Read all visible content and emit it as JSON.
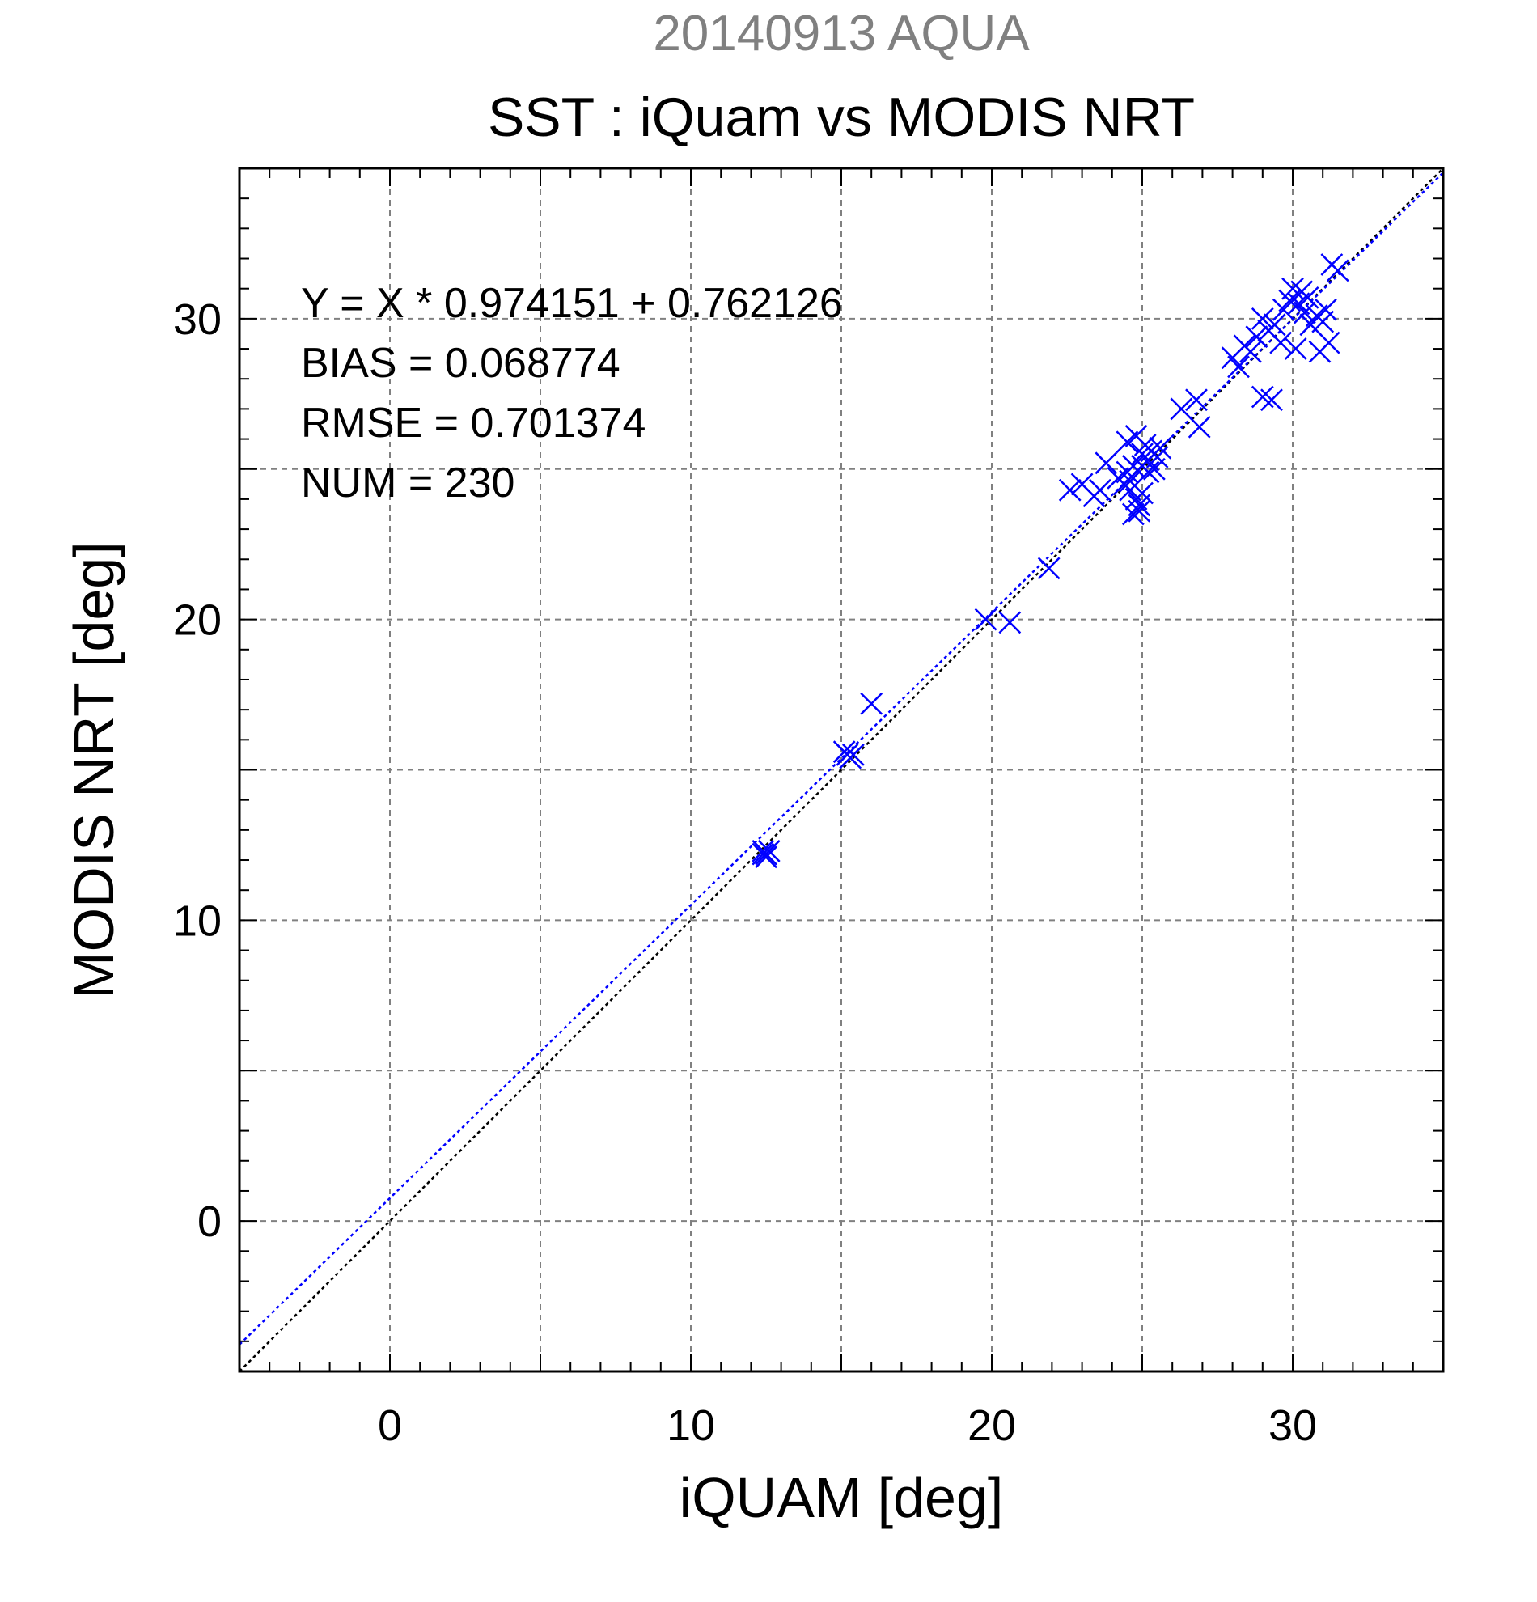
{
  "chart_data": {
    "type": "scatter",
    "subtitle": "20140913 AQUA",
    "title": "SST : iQuam vs MODIS NRT",
    "xlabel": "iQUAM [deg]",
    "ylabel": "MODIS NRT [deg]",
    "xlim": [
      -5,
      35
    ],
    "ylim": [
      -5,
      35
    ],
    "xticks": [
      0,
      10,
      20,
      30
    ],
    "yticks": [
      0,
      10,
      20,
      30
    ],
    "tick_labels": {
      "x": [
        "0",
        "10",
        "20",
        "30"
      ],
      "y": [
        "0",
        "10",
        "20",
        "30"
      ]
    },
    "grid": true,
    "colors": {
      "points": "#0000ff",
      "fit_line": "#0000ff",
      "identity_line": "#000000",
      "subtitle": "#808080",
      "grid": "#808080"
    },
    "stats": {
      "equation": "Y = X * 0.974151 + 0.762126",
      "bias": "BIAS = 0.068774",
      "rmse": "RMSE = 0.701374",
      "num": "NUM = 230"
    },
    "fit": {
      "slope": 0.974151,
      "intercept": 0.762126
    },
    "identity": {
      "slope": 1,
      "intercept": 0
    },
    "points": [
      [
        12.4,
        12.3
      ],
      [
        12.5,
        12.2
      ],
      [
        12.6,
        12.3
      ],
      [
        12.5,
        12.1
      ],
      [
        12.4,
        12.2
      ],
      [
        15.2,
        15.5
      ],
      [
        15.3,
        15.4
      ],
      [
        15.4,
        15.5
      ],
      [
        15.1,
        15.6
      ],
      [
        16.0,
        17.2
      ],
      [
        19.8,
        20.0
      ],
      [
        20.6,
        19.9
      ],
      [
        21.9,
        21.7
      ],
      [
        22.6,
        24.3
      ],
      [
        23.0,
        24.5
      ],
      [
        23.4,
        24.1
      ],
      [
        23.6,
        24.3
      ],
      [
        23.8,
        25.2
      ],
      [
        24.2,
        24.7
      ],
      [
        24.4,
        24.5
      ],
      [
        24.5,
        24.9
      ],
      [
        24.6,
        24.3
      ],
      [
        24.7,
        25.1
      ],
      [
        24.8,
        24.0
      ],
      [
        24.9,
        23.8
      ],
      [
        24.7,
        23.5
      ],
      [
        24.9,
        23.6
      ],
      [
        25.0,
        24.2
      ],
      [
        24.5,
        25.9
      ],
      [
        24.8,
        26.1
      ],
      [
        25.0,
        25.5
      ],
      [
        25.1,
        25.8
      ],
      [
        25.2,
        25.3
      ],
      [
        25.3,
        25.6
      ],
      [
        25.4,
        25.0
      ],
      [
        25.5,
        25.4
      ],
      [
        25.6,
        25.7
      ],
      [
        25.2,
        24.9
      ],
      [
        25.0,
        25.1
      ],
      [
        24.6,
        24.6
      ],
      [
        26.3,
        27.0
      ],
      [
        26.8,
        27.3
      ],
      [
        26.9,
        26.4
      ],
      [
        28.0,
        28.7
      ],
      [
        28.2,
        28.4
      ],
      [
        28.4,
        29.1
      ],
      [
        28.6,
        28.9
      ],
      [
        28.8,
        29.4
      ],
      [
        29.0,
        30.0
      ],
      [
        29.2,
        29.6
      ],
      [
        29.4,
        29.8
      ],
      [
        29.6,
        29.2
      ],
      [
        29.0,
        27.4
      ],
      [
        29.3,
        27.3
      ],
      [
        29.7,
        30.3
      ],
      [
        29.9,
        30.6
      ],
      [
        30.0,
        31.0
      ],
      [
        30.2,
        30.5
      ],
      [
        30.3,
        30.9
      ],
      [
        30.4,
        30.2
      ],
      [
        30.5,
        30.7
      ],
      [
        30.6,
        29.8
      ],
      [
        30.8,
        30.1
      ],
      [
        30.9,
        28.9
      ],
      [
        31.0,
        29.9
      ],
      [
        31.1,
        30.3
      ],
      [
        31.3,
        31.8
      ],
      [
        31.5,
        31.6
      ],
      [
        31.2,
        29.2
      ],
      [
        30.1,
        29.0
      ]
    ]
  }
}
